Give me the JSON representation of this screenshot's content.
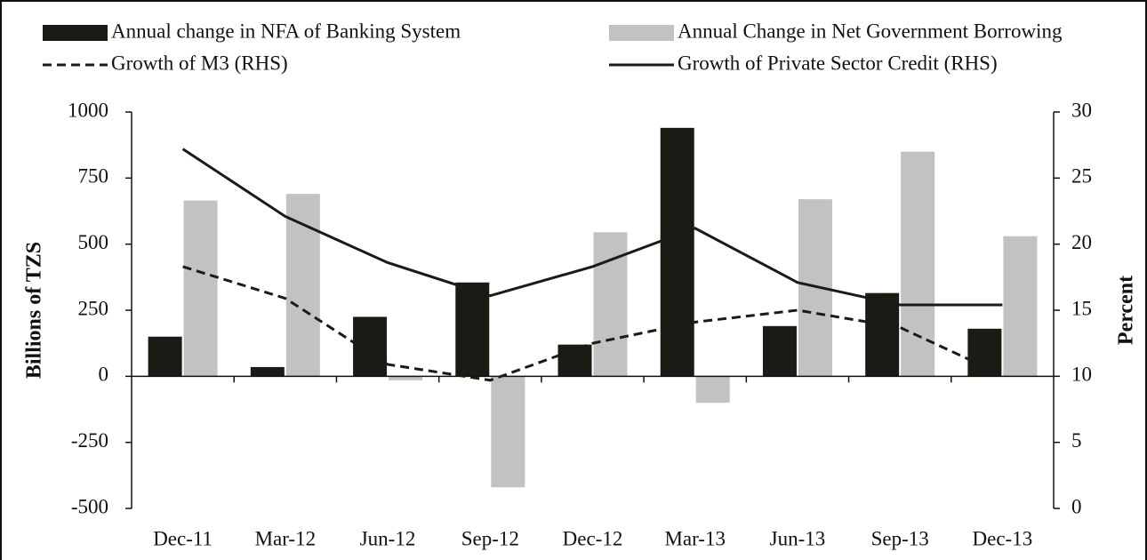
{
  "chart_data": {
    "type": "bar",
    "categories": [
      "Dec-11",
      "Mar-12",
      "Jun-12",
      "Sep-12",
      "Dec-12",
      "Mar-13",
      "Jun-13",
      "Sep-13",
      "Dec-13"
    ],
    "series": [
      {
        "name": "Annual change in NFA of Banking System",
        "color": "#1b1a15",
        "values": [
          150,
          35,
          225,
          355,
          120,
          940,
          190,
          315,
          180
        ]
      },
      {
        "name": "Annual Change in Net Government Borrowing",
        "color": "#c2c2c2",
        "values": [
          665,
          690,
          -15,
          -420,
          545,
          -100,
          670,
          850,
          530
        ]
      },
      {
        "name": "Growth of M3 (RHS)",
        "color": "#1b1a15",
        "axis": "y2",
        "line_style": "dashed",
        "values": [
          18.3,
          15.9,
          10.9,
          9.7,
          12.5,
          14.1,
          15.0,
          13.7,
          10.1
        ]
      },
      {
        "name": "Growth of Private Sector Credit (RHS)",
        "color": "#1b1a15",
        "axis": "y2",
        "line_style": "solid",
        "values": [
          27.2,
          22.1,
          18.6,
          16.1,
          18.3,
          21.2,
          17.1,
          15.4,
          15.4
        ]
      }
    ],
    "y_label": "Billions of TZS",
    "y2_label": "Percent",
    "ylim": [
      -500,
      1000
    ],
    "yticks": [
      -500,
      -250,
      0,
      250,
      500,
      750,
      1000
    ],
    "y2lim": [
      0,
      30
    ],
    "y2ticks": [
      0,
      5,
      10,
      15,
      20,
      25,
      30
    ]
  }
}
